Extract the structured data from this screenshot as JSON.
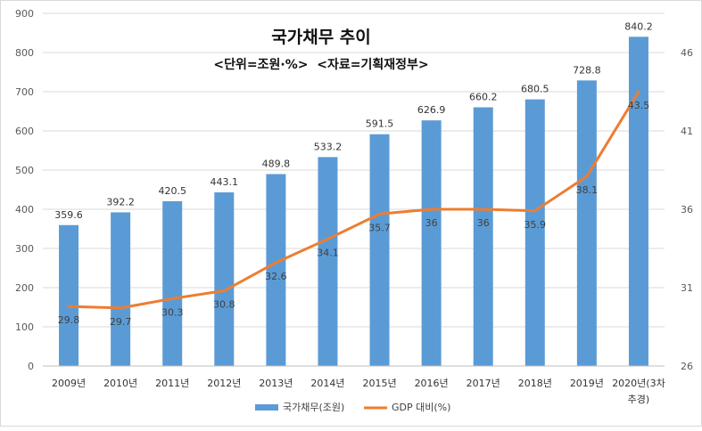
{
  "chart_data": {
    "type": "bar+line",
    "title": "국가채무 추이",
    "subtitle": "<단위=조원·%>  <자료=기획재정부>",
    "categories": [
      "2009년",
      "2010년",
      "2011년",
      "2012년",
      "2013년",
      "2014년",
      "2015년",
      "2016년",
      "2017년",
      "2018년",
      "2019년",
      "2020년(3차\n추경)"
    ],
    "series": [
      {
        "name": "국가채무(조원)",
        "type": "bar",
        "axis": "left",
        "color": "#5B9BD5",
        "values": [
          359.6,
          392.2,
          420.5,
          443.1,
          489.8,
          533.2,
          591.5,
          626.9,
          660.2,
          680.5,
          728.8,
          840.2
        ],
        "labels": [
          "359.6",
          "392.2",
          "420.5",
          "443.1",
          "489.8",
          "533.2",
          "591.5",
          "626.9",
          "660.2",
          "680.5",
          "728.8",
          "840.2"
        ]
      },
      {
        "name": "GDP 대비(%)",
        "type": "line",
        "axis": "right",
        "color": "#ED7D31",
        "values": [
          29.8,
          29.7,
          30.3,
          30.8,
          32.6,
          34.1,
          35.7,
          36,
          36,
          35.9,
          38.1,
          43.5
        ],
        "labels": [
          "29.8",
          "29.7",
          "30.3",
          "30.8",
          "32.6",
          "34.1",
          "35.7",
          "36",
          "36",
          "35.9",
          "38.1",
          "43.5"
        ]
      }
    ],
    "y_left": {
      "range": [
        0,
        900
      ],
      "ticks": [
        "0",
        "100",
        "200",
        "300",
        "400",
        "500",
        "600",
        "700",
        "800",
        "900"
      ]
    },
    "y_right": {
      "range": [
        26,
        48.5
      ],
      "ticks": [
        "26",
        "31",
        "36",
        "41",
        "46"
      ]
    },
    "grid": true,
    "legend_position": "bottom"
  }
}
